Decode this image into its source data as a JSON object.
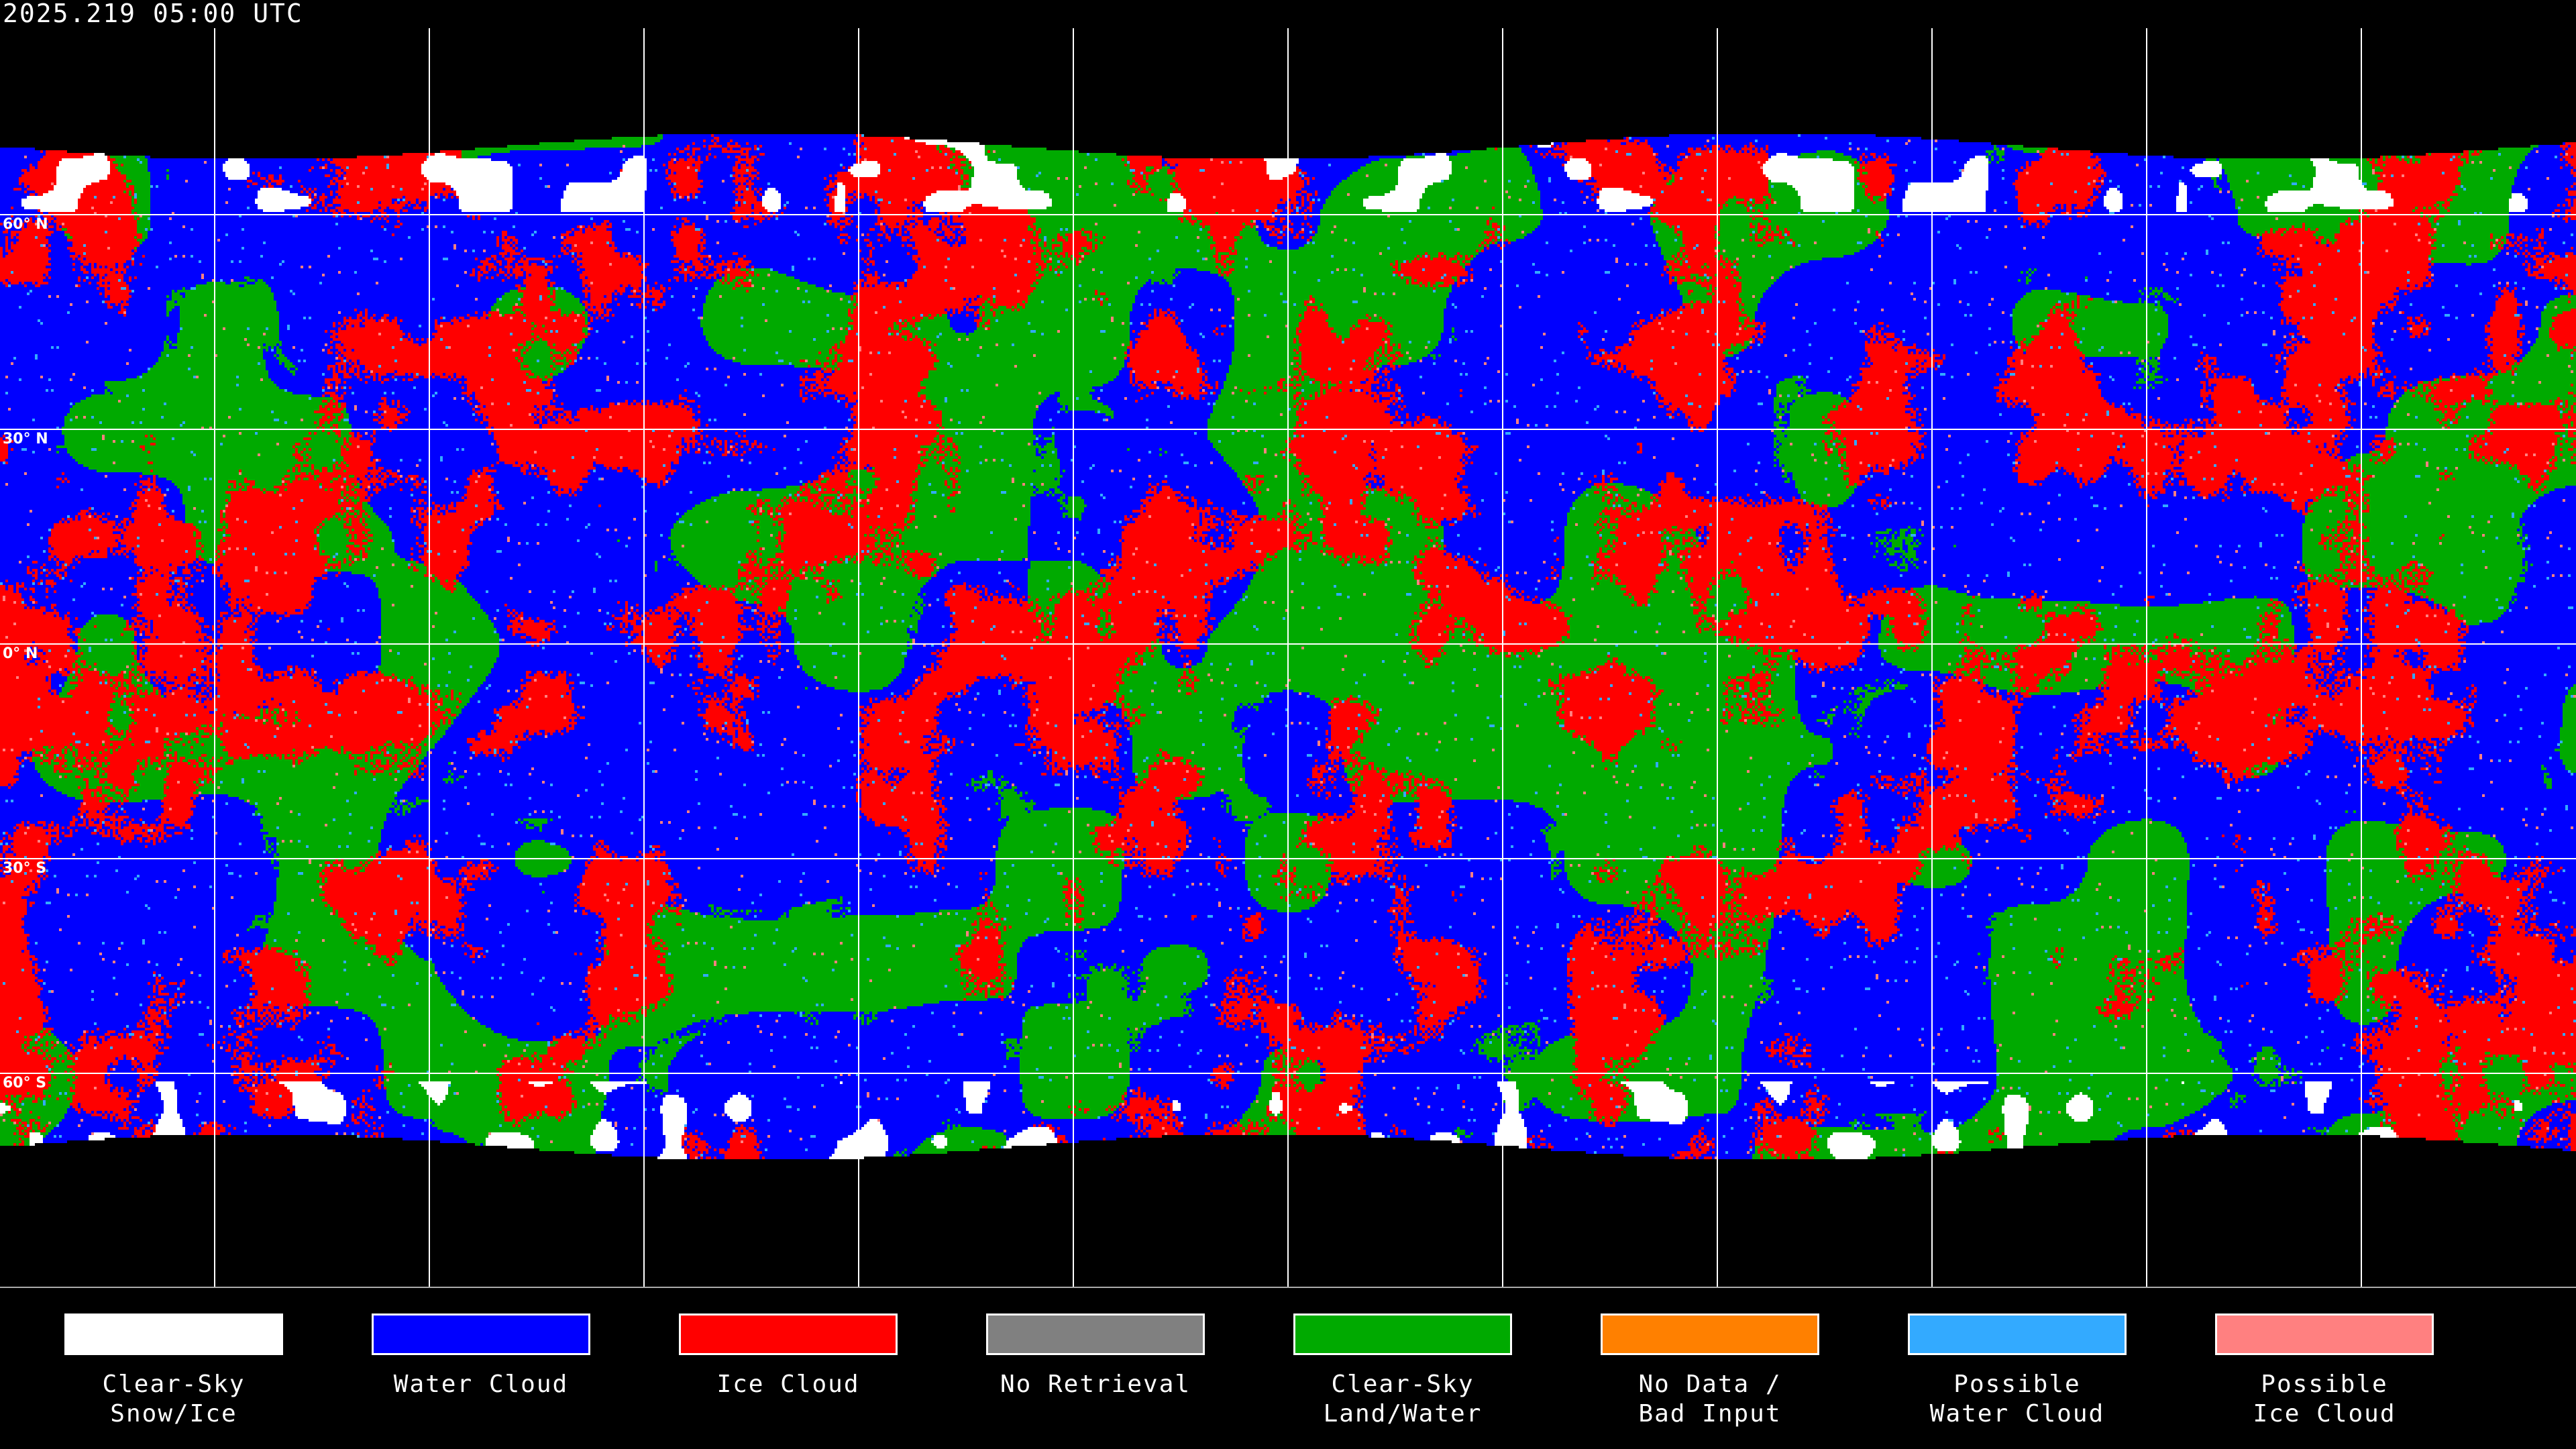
{
  "timestamp": "2025.219 05:00 UTC",
  "latitude_labels": [
    "60° N",
    "30° N",
    "0° N",
    "30° S",
    "60° S"
  ],
  "legend": [
    {
      "label": "Clear-Sky\nSnow/Ice",
      "color": "#ffffff"
    },
    {
      "label": "Water Cloud",
      "color": "#0000ff"
    },
    {
      "label": "Ice Cloud",
      "color": "#ff0000"
    },
    {
      "label": "No Retrieval",
      "color": "#808080"
    },
    {
      "label": "Clear-Sky\nLand/Water",
      "color": "#00aa00"
    },
    {
      "label": "No Data /\nBad Input",
      "color": "#ff8000"
    },
    {
      "label": "Possible\nWater Cloud",
      "color": "#33aaff"
    },
    {
      "label": "Possible\nIce Cloud",
      "color": "#ff8080"
    }
  ]
}
